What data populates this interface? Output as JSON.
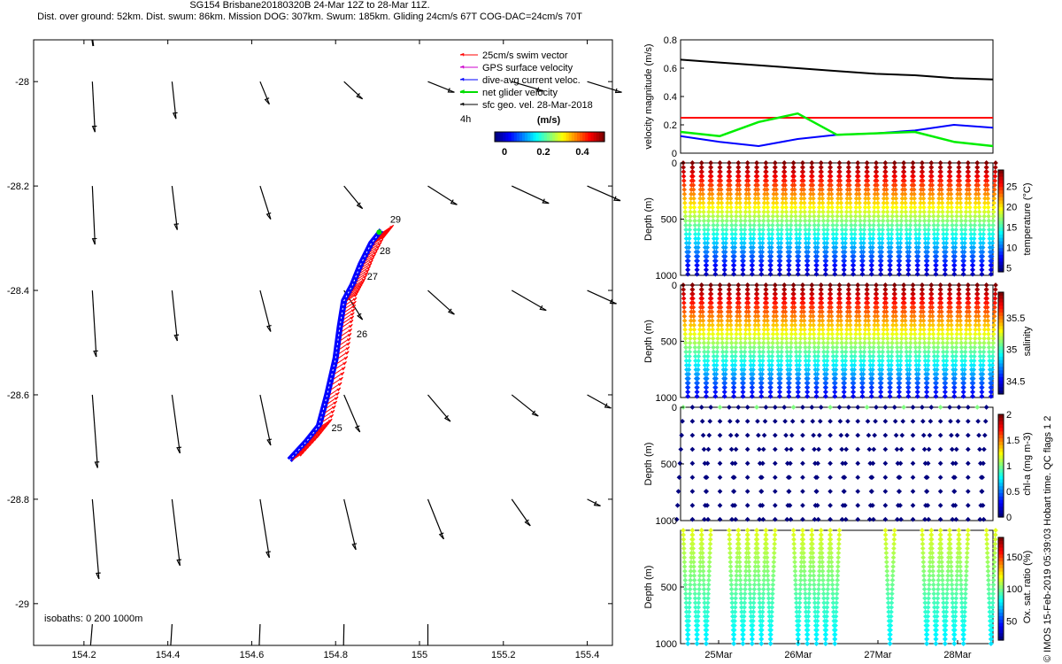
{
  "header": {
    "line1": "SG154 Brisbane20180320B 24-Mar 12Z to 28-Mar 11Z.",
    "line2": "Dist. over ground: 52km. Dist. swum: 86km. Mission DOG: 307km. Swum: 185km. Gliding 24cm/s 67T COG-DAC=24cm/s 70T"
  },
  "footer_stamp": "© IMOS 15-Feb-2019 05:39:03 Hobart time. QC flags 1  2",
  "colors": {
    "swim": "#ff0000",
    "gps": "#cc00cc",
    "dac": "#0000ff",
    "net": "#00dd00",
    "sfc": "#000000"
  },
  "chart_data": [
    {
      "id": "map",
      "type": "scatter",
      "title": "",
      "xlabel": "",
      "ylabel": "",
      "xlim": [
        154.08,
        155.46
      ],
      "ylim": [
        -29.08,
        -27.92
      ],
      "xticks": [
        154.2,
        154.4,
        154.6,
        154.8,
        155,
        155.2,
        155.4
      ],
      "xtick_labels": [
        "154.2",
        "154.4",
        "154.6",
        "154.8",
        "155",
        "155.2",
        "155.4"
      ],
      "yticks": [
        -28,
        -28.2,
        -28.4,
        -28.6,
        -28.8,
        -29
      ],
      "ytick_labels": [
        "-28",
        "-28.2",
        "-28.4",
        "-28.6",
        "-28.8",
        "-29"
      ],
      "legend": {
        "placement": "top-right",
        "entries": [
          "25cm/s swim vector",
          "GPS surface velocity",
          "dive-avg current veloc.",
          "net glider velocity",
          "sfc geo. vel. 28-Mar-2018"
        ],
        "scale_note": "4h",
        "colorbar_title": "(m/s)",
        "colorbar_ticks": [
          "0",
          "0.2",
          "0.4"
        ]
      },
      "isobaths_label": "isobaths: 0   200  1000m",
      "track": [
        [
          154.69,
          -28.725
        ],
        [
          154.73,
          -28.69
        ],
        [
          154.76,
          -28.66
        ],
        [
          154.78,
          -28.6
        ],
        [
          154.8,
          -28.53
        ],
        [
          154.81,
          -28.47
        ],
        [
          154.82,
          -28.42
        ],
        [
          154.84,
          -28.39
        ],
        [
          154.86,
          -28.35
        ],
        [
          154.885,
          -28.31
        ],
        [
          154.91,
          -28.285
        ]
      ],
      "day_labels": [
        {
          "label": "25",
          "lon": 154.79,
          "lat": -28.67
        },
        {
          "label": "26",
          "lon": 154.85,
          "lat": -28.49
        },
        {
          "label": "27",
          "lon": 154.875,
          "lat": -28.38
        },
        {
          "label": "28",
          "lon": 154.905,
          "lat": -28.33
        },
        {
          "label": "29",
          "lon": 154.93,
          "lat": -28.27
        }
      ],
      "sfc_vectors": [
        {
          "lon": 154.22,
          "lat": -28.0,
          "u": 0.02,
          "v": -0.38
        },
        {
          "lon": 154.41,
          "lat": -28.0,
          "u": 0.03,
          "v": -0.28
        },
        {
          "lon": 154.62,
          "lat": -28.0,
          "u": 0.07,
          "v": -0.17
        },
        {
          "lon": 154.82,
          "lat": -28.0,
          "u": 0.14,
          "v": -0.13
        },
        {
          "lon": 155.02,
          "lat": -28.0,
          "u": 0.2,
          "v": -0.08
        },
        {
          "lon": 155.22,
          "lat": -28.0,
          "u": 0.24,
          "v": -0.07
        },
        {
          "lon": 155.4,
          "lat": -28.0,
          "u": 0.26,
          "v": -0.08
        },
        {
          "lon": 154.22,
          "lat": -28.2,
          "u": 0.02,
          "v": -0.44
        },
        {
          "lon": 154.41,
          "lat": -28.2,
          "u": 0.04,
          "v": -0.33
        },
        {
          "lon": 154.62,
          "lat": -28.2,
          "u": 0.08,
          "v": -0.25
        },
        {
          "lon": 154.82,
          "lat": -28.2,
          "u": 0.14,
          "v": -0.17
        },
        {
          "lon": 155.02,
          "lat": -28.2,
          "u": 0.22,
          "v": -0.14
        },
        {
          "lon": 155.22,
          "lat": -28.2,
          "u": 0.28,
          "v": -0.13
        },
        {
          "lon": 155.4,
          "lat": -28.2,
          "u": 0.25,
          "v": -0.11
        },
        {
          "lon": 154.22,
          "lat": -28.4,
          "u": 0.03,
          "v": -0.5
        },
        {
          "lon": 154.41,
          "lat": -28.4,
          "u": 0.04,
          "v": -0.38
        },
        {
          "lon": 154.62,
          "lat": -28.4,
          "u": 0.08,
          "v": -0.31
        },
        {
          "lon": 154.82,
          "lat": -28.4,
          "u": 0.14,
          "v": -0.22
        },
        {
          "lon": 155.02,
          "lat": -28.4,
          "u": 0.2,
          "v": -0.18
        },
        {
          "lon": 155.22,
          "lat": -28.4,
          "u": 0.26,
          "v": -0.15
        },
        {
          "lon": 155.4,
          "lat": -28.4,
          "u": 0.22,
          "v": -0.1
        },
        {
          "lon": 154.22,
          "lat": -28.6,
          "u": 0.04,
          "v": -0.55
        },
        {
          "lon": 154.41,
          "lat": -28.6,
          "u": 0.06,
          "v": -0.44
        },
        {
          "lon": 154.62,
          "lat": -28.6,
          "u": 0.08,
          "v": -0.38
        },
        {
          "lon": 154.82,
          "lat": -28.6,
          "u": 0.12,
          "v": -0.28
        },
        {
          "lon": 155.02,
          "lat": -28.6,
          "u": 0.17,
          "v": -0.2
        },
        {
          "lon": 155.22,
          "lat": -28.6,
          "u": 0.2,
          "v": -0.16
        },
        {
          "lon": 155.4,
          "lat": -28.6,
          "u": 0.18,
          "v": -0.1
        },
        {
          "lon": 154.22,
          "lat": -28.8,
          "u": 0.05,
          "v": -0.6
        },
        {
          "lon": 154.41,
          "lat": -28.8,
          "u": 0.06,
          "v": -0.5
        },
        {
          "lon": 154.62,
          "lat": -28.8,
          "u": 0.07,
          "v": -0.44
        },
        {
          "lon": 154.82,
          "lat": -28.8,
          "u": 0.09,
          "v": -0.38
        },
        {
          "lon": 155.02,
          "lat": -28.8,
          "u": 0.12,
          "v": -0.3
        },
        {
          "lon": 155.22,
          "lat": -28.8,
          "u": 0.14,
          "v": -0.2
        },
        {
          "lon": 155.4,
          "lat": -28.8,
          "u": 0.1,
          "v": -0.05
        }
      ]
    },
    {
      "id": "velocity",
      "type": "line",
      "ylabel": "velocity magnitude (m/s)",
      "ylim": [
        0,
        0.8
      ],
      "yticks": [
        0,
        0.2,
        0.4,
        0.6,
        0.8
      ],
      "ytick_labels": [
        "0",
        "0.2",
        "0.4",
        "0.6",
        "0.8"
      ],
      "x": [
        0,
        0.5,
        1,
        1.5,
        2,
        2.5,
        3,
        3.5,
        4
      ],
      "series": [
        {
          "name": "mission speed",
          "color": "#000000",
          "values": [
            0.66,
            0.64,
            0.62,
            0.6,
            0.58,
            0.56,
            0.55,
            0.53,
            0.52
          ]
        },
        {
          "name": "swim speed",
          "color": "#ff0000",
          "values": [
            0.25,
            0.25,
            0.25,
            0.25,
            0.25,
            0.25,
            0.25,
            0.25,
            0.25
          ]
        },
        {
          "name": "dive-avg current",
          "color": "#0000ff",
          "values": [
            0.12,
            0.08,
            0.05,
            0.1,
            0.13,
            0.14,
            0.16,
            0.2,
            0.18
          ]
        },
        {
          "name": "net glider",
          "color": "#00ee00",
          "values": [
            0.15,
            0.12,
            0.22,
            0.28,
            0.13,
            0.14,
            0.15,
            0.08,
            0.05
          ]
        }
      ]
    },
    {
      "id": "temperature",
      "type": "scatter",
      "ylabel": "Depth (m)",
      "ylim": [
        1000,
        0
      ],
      "yticks": [
        0,
        500,
        1000
      ],
      "ytick_labels": [
        "0",
        "500",
        "1000"
      ],
      "colorbar": {
        "label": "temperature (°C)",
        "range": [
          4,
          29
        ],
        "ticks": [
          "5",
          "10",
          "15",
          "20",
          "25"
        ]
      },
      "dives": 34,
      "profile": "temperature"
    },
    {
      "id": "salinity",
      "type": "scatter",
      "ylabel": "Depth (m)",
      "ylim": [
        1000,
        0
      ],
      "yticks": [
        0,
        500,
        1000
      ],
      "ytick_labels": [
        "0",
        "500",
        "1000"
      ],
      "colorbar": {
        "label": "salinity",
        "range": [
          34.3,
          35.9
        ],
        "ticks": [
          "34.5",
          "35",
          "35.5"
        ]
      },
      "dives": 34,
      "profile": "salinity"
    },
    {
      "id": "chla",
      "type": "scatter",
      "ylabel": "Depth (m)",
      "ylim": [
        1000,
        0
      ],
      "yticks": [
        0,
        500,
        1000
      ],
      "ytick_labels": [
        "0",
        "500",
        "1000"
      ],
      "colorbar": {
        "label": "chl-a (mg m-3)",
        "range": [
          0,
          2
        ],
        "ticks": [
          "0",
          "0.5",
          "1",
          "1.5",
          "2"
        ]
      },
      "dives": 34,
      "profile": "chla"
    },
    {
      "id": "oxygen",
      "type": "scatter",
      "ylabel": "Depth (m)",
      "ylim": [
        1000,
        0
      ],
      "yticks": [
        500,
        1000
      ],
      "ytick_labels": [
        "500",
        "1000"
      ],
      "colorbar": {
        "label": "Ox. sat. ratio (%)",
        "range": [
          20,
          180
        ],
        "ticks": [
          "50",
          "100",
          "150"
        ]
      },
      "xtick_labels": [
        "25Mar",
        "26Mar",
        "27Mar",
        "28Mar"
      ],
      "dives": 34,
      "profile": "oxygen"
    }
  ]
}
